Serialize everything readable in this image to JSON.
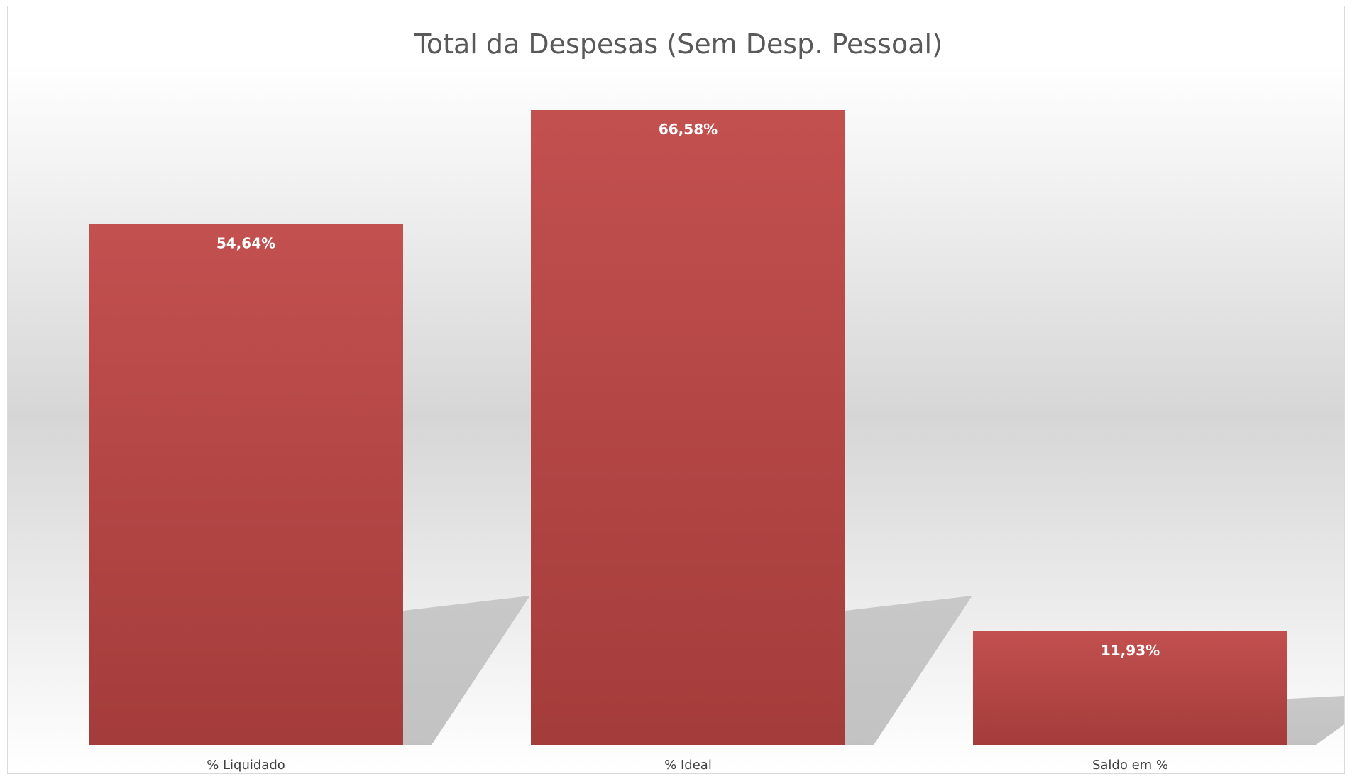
{
  "chart_data": {
    "type": "bar",
    "title": "Total da Despesas (Sem Desp. Pessoal)",
    "categories": [
      "% Liquidado",
      "% Ideal",
      "Saldo em %"
    ],
    "values": [
      54.64,
      66.58,
      11.93
    ],
    "data_labels": [
      "54,64%",
      "66,58%",
      "11,93%"
    ],
    "xlabel": "",
    "ylabel": "",
    "ylim": [
      0,
      80
    ],
    "grid": false,
    "legend": "none",
    "bar_color": "#b34848",
    "bar_color_top": "#c2504f",
    "bar_color_bottom": "#a43c3b"
  }
}
